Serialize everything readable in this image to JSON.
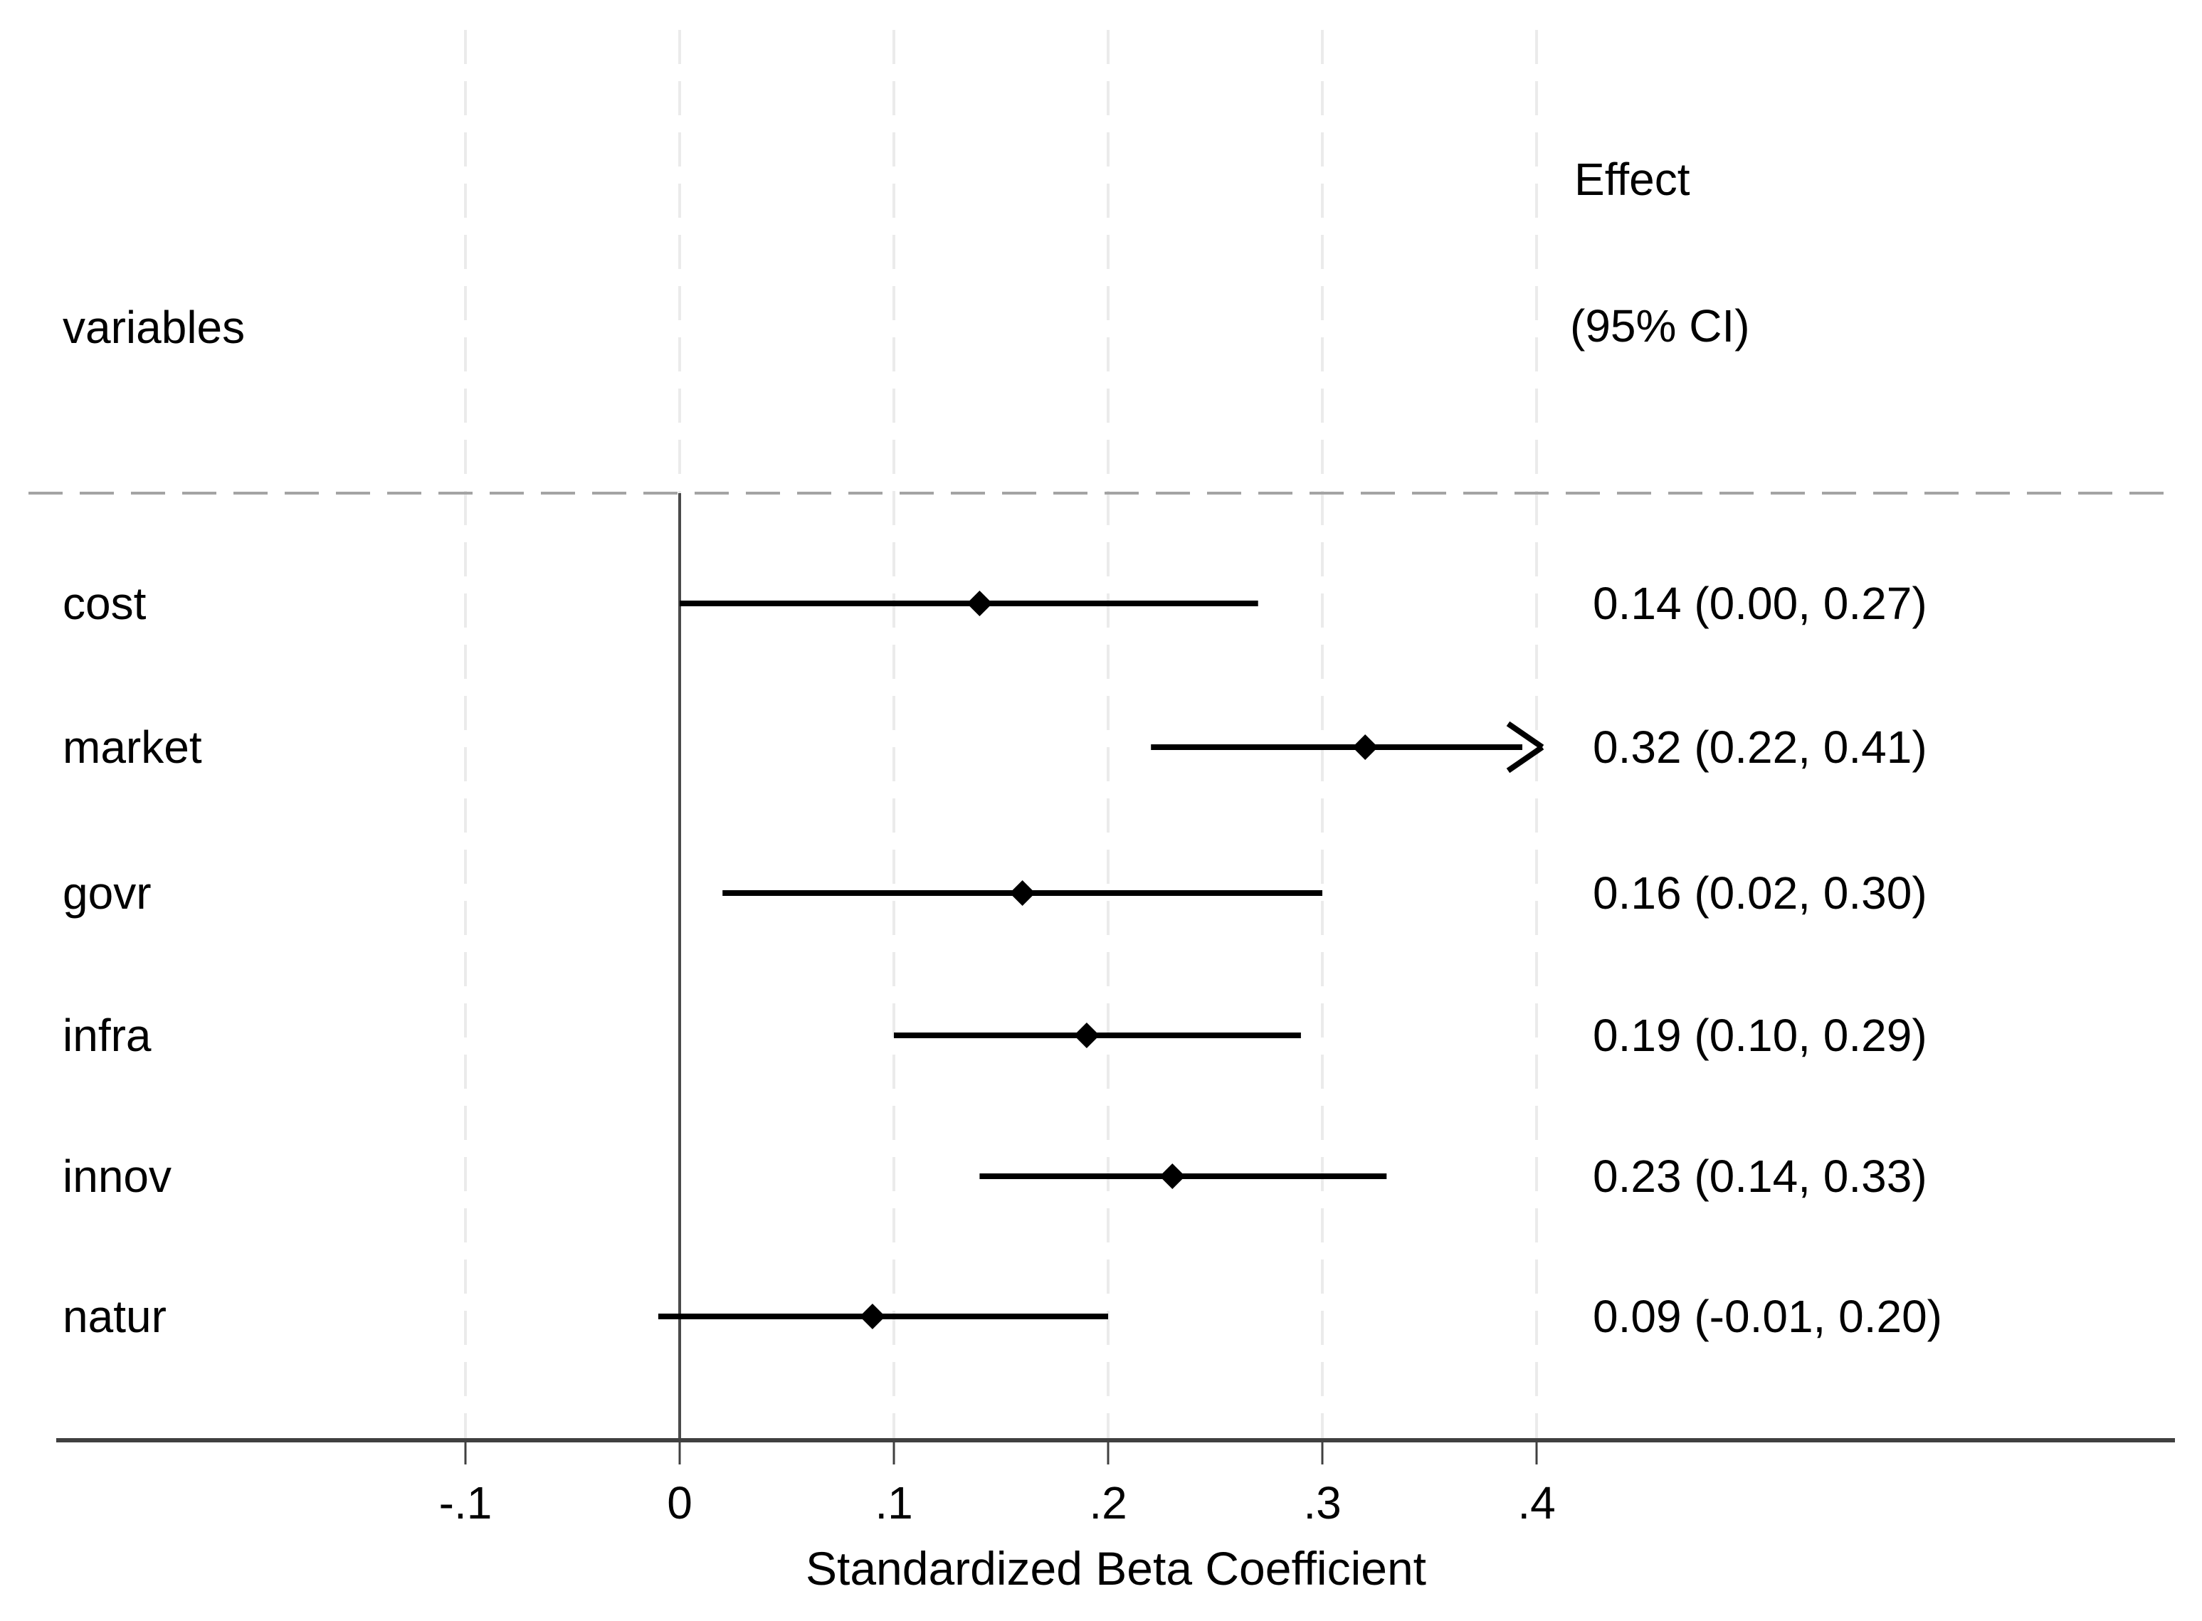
{
  "chart_data": {
    "type": "forest",
    "headers": {
      "variables": "variables",
      "effect_line1": "Effect",
      "effect_line2": "(95% CI)"
    },
    "rows": [
      {
        "label": "cost",
        "effect": 0.14,
        "ci_low": 0.0,
        "ci_high": 0.27,
        "effect_text": "0.14 (0.00, 0.27)",
        "clipped_right": false
      },
      {
        "label": "market",
        "effect": 0.32,
        "ci_low": 0.22,
        "ci_high": 0.41,
        "effect_text": "0.32 (0.22, 0.41)",
        "clipped_right": true
      },
      {
        "label": "govr",
        "effect": 0.16,
        "ci_low": 0.02,
        "ci_high": 0.3,
        "effect_text": "0.16 (0.02, 0.30)",
        "clipped_right": false
      },
      {
        "label": "infra",
        "effect": 0.19,
        "ci_low": 0.1,
        "ci_high": 0.29,
        "effect_text": "0.19 (0.10, 0.29)",
        "clipped_right": false
      },
      {
        "label": "innov",
        "effect": 0.23,
        "ci_low": 0.14,
        "ci_high": 0.33,
        "effect_text": "0.23 (0.14, 0.33)",
        "clipped_right": false
      },
      {
        "label": "natur",
        "effect": 0.09,
        "ci_low": -0.01,
        "ci_high": 0.2,
        "effect_text": "0.09 (-0.01, 0.20)",
        "clipped_right": false
      }
    ],
    "x_axis": {
      "label": "Standardized Beta Coefficient",
      "range": [
        -0.1,
        0.4
      ],
      "ticks": [
        {
          "value": -0.1,
          "label": "-.1"
        },
        {
          "value": 0.0,
          "label": "0"
        },
        {
          "value": 0.1,
          "label": ".1"
        },
        {
          "value": 0.2,
          "label": ".2"
        },
        {
          "value": 0.3,
          "label": ".3"
        },
        {
          "value": 0.4,
          "label": ".4"
        }
      ],
      "grid": true,
      "zero_reference_line": true
    },
    "legend": null,
    "colors": {
      "background": "#ffffff",
      "text": "#000000",
      "ci_line": "#000000",
      "marker": "#000000",
      "axis": "#404040",
      "zero_line": "#4a4a4a",
      "gridline": "#ebebeb",
      "separator": "#a4a4a4"
    },
    "marker_shape": "diamond"
  }
}
